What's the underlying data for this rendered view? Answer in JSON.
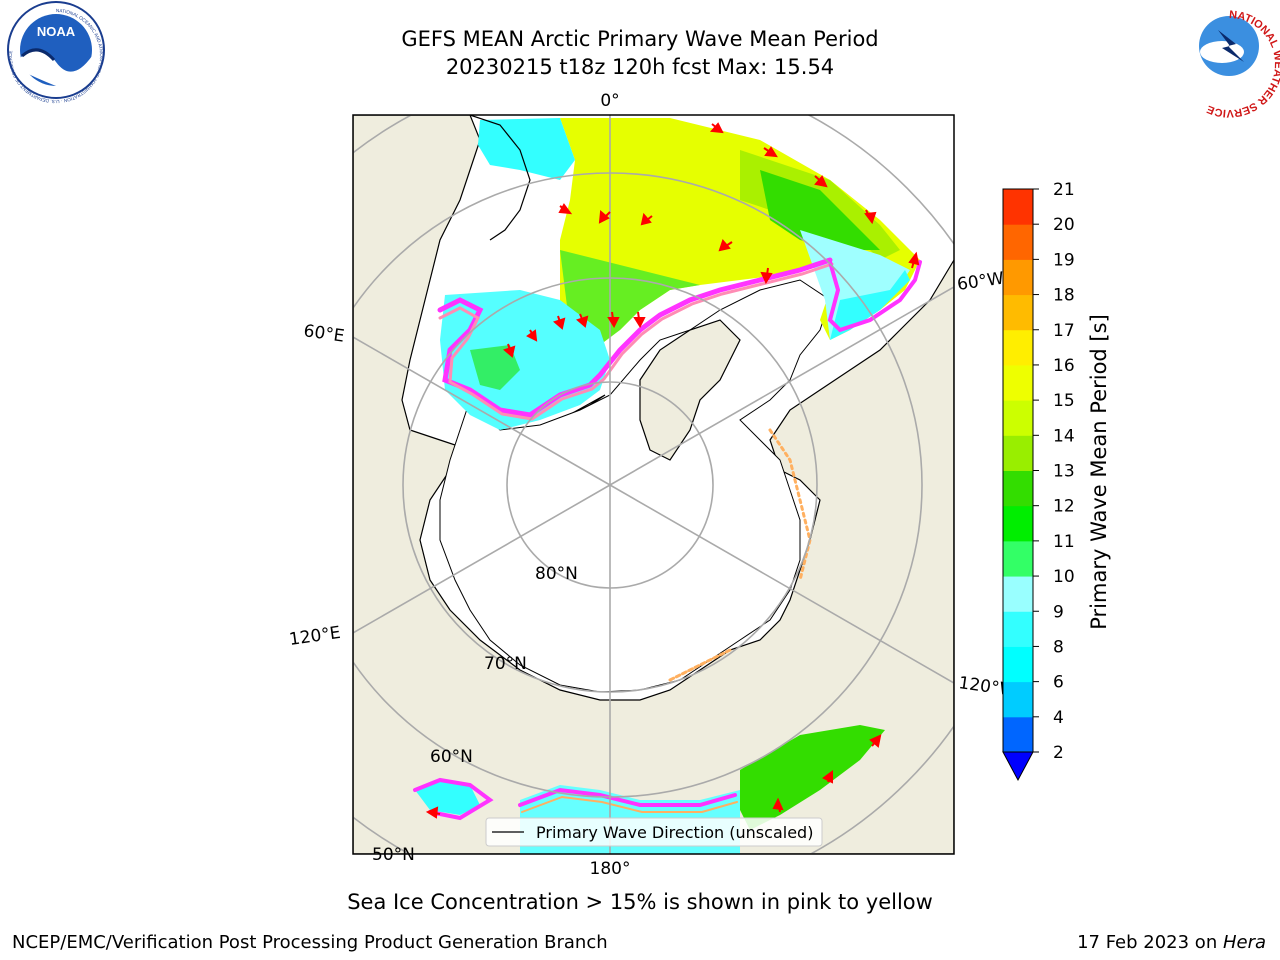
{
  "header": {
    "title_line1": "GEFS MEAN Arctic Primary Wave Mean Period",
    "title_line2": "20230215 t18z 120h fcst   Max: 15.54",
    "logo_left": "noaa-logo",
    "logo_left_text": "NOAA",
    "logo_left_ring_text": "NATIONAL OCEANIC AND ATMOSPHERIC ADMINISTRATION · U.S. DEPARTMENT OF COMMERCE",
    "logo_right": "national-weather-service-logo",
    "logo_right_text": "NATIONAL WEATHER SERVICE"
  },
  "map": {
    "projection": "north-polar-stereographic",
    "longitude_labels": [
      "0°",
      "60°W",
      "60°E",
      "120°E",
      "120°W",
      "180°"
    ],
    "latitude_labels": [
      "80°N",
      "70°N",
      "60°N",
      "50°N"
    ],
    "legend_label": "Primary Wave Direction (unscaled)",
    "land_color": "#efedde",
    "ice_colors": [
      "#ff33ff",
      "#ff8cb4",
      "#ffb060",
      "#ffd040"
    ]
  },
  "colorbar": {
    "label": "Primary Wave Mean Period [s]",
    "ticks": [
      "2",
      "4",
      "6",
      "8",
      "9",
      "10",
      "11",
      "12",
      "13",
      "14",
      "15",
      "16",
      "17",
      "18",
      "19",
      "20",
      "21"
    ],
    "colors": [
      "#0066ff",
      "#00ccff",
      "#00ffff",
      "#33ffff",
      "#99ffff",
      "#33ff66",
      "#00ee00",
      "#33dd00",
      "#99ee00",
      "#ccff00",
      "#eeff00",
      "#ffee00",
      "#ffbb00",
      "#ff9900",
      "#ff6600",
      "#ff3300",
      "#ff0000"
    ],
    "under_color": "#0000ff"
  },
  "caption": "Sea Ice Concentration > 15% is shown in pink to yellow",
  "footer": {
    "left": "NCEP/EMC/Verification Post Processing Product Generation Branch",
    "right_prefix": "17 Feb 2023 on ",
    "right_host": "Hera"
  }
}
